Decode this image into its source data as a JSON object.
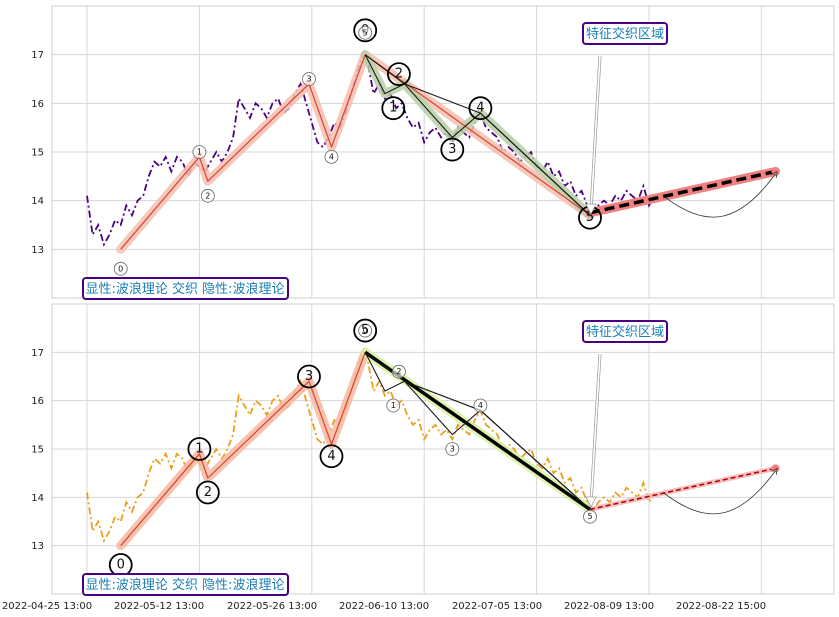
{
  "chart_data": [
    {
      "panel": "top",
      "type": "line",
      "xlim": [
        0,
        23
      ],
      "ylim": [
        12.0,
        18.0
      ],
      "yticks": [
        13,
        14,
        15,
        16,
        17
      ],
      "grid": true,
      "legend_text": "显性:波浪理论 交织 隐性:波浪理论",
      "annotation_text": "特征交织区域",
      "price_series": {
        "style": "dashdot",
        "color": "#4b0082",
        "x": [
          0.0,
          0.2,
          0.4,
          0.6,
          0.8,
          1.0,
          1.2,
          1.4,
          1.6,
          1.8,
          2.0,
          2.2,
          2.4,
          2.6,
          2.8,
          3.0,
          3.2,
          3.4,
          3.6,
          3.8,
          4.0,
          4.2,
          4.4,
          4.6,
          4.8,
          5.0,
          5.2,
          5.4,
          5.6,
          5.8,
          6.0,
          6.2,
          6.4,
          6.6,
          6.8,
          7.0,
          7.2,
          7.4,
          7.6,
          7.8,
          8.0,
          8.2,
          8.4,
          8.6,
          8.8,
          9.0,
          9.2,
          9.4,
          9.6,
          9.8,
          10.0,
          10.2,
          10.4,
          10.6,
          10.8,
          11.0,
          11.2,
          11.4,
          11.6,
          11.8,
          12.0,
          12.2,
          12.4,
          12.6,
          12.8,
          13.0,
          13.2,
          13.4,
          13.6,
          13.8,
          14.0,
          14.2,
          14.4,
          14.6,
          14.8,
          15.0,
          15.2,
          15.4,
          15.6,
          15.8,
          16.0,
          16.2,
          16.4,
          16.6,
          16.8,
          17.0,
          17.2,
          17.4,
          17.6,
          17.8,
          18.0,
          18.2,
          18.4,
          18.6,
          18.8,
          19.0,
          19.2,
          19.4,
          19.6,
          19.8,
          20.0,
          20.2
        ],
        "y": [
          14.1,
          13.3,
          13.5,
          13.1,
          13.3,
          13.6,
          13.5,
          13.9,
          13.7,
          14.0,
          14.1,
          14.5,
          14.8,
          14.7,
          14.9,
          14.6,
          14.9,
          14.8,
          14.5,
          14.8,
          14.7,
          14.6,
          14.8,
          15.0,
          14.8,
          15.0,
          15.3,
          16.1,
          15.9,
          15.7,
          16.0,
          15.9,
          15.7,
          16.0,
          16.1,
          15.8,
          15.9,
          16.2,
          16.4,
          16.0,
          15.6,
          15.2,
          15.1,
          15.3,
          15.6,
          15.5,
          15.8,
          16.2,
          16.6,
          17.0,
          16.8,
          16.2,
          16.4,
          16.1,
          16.2,
          15.9,
          16.0,
          15.7,
          15.5,
          15.6,
          15.2,
          15.4,
          15.5,
          15.3,
          15.4,
          15.2,
          15.5,
          15.4,
          15.3,
          15.6,
          15.8,
          15.5,
          15.4,
          15.3,
          15.0,
          15.1,
          15.0,
          14.8,
          14.9,
          15.0,
          14.7,
          14.6,
          14.8,
          14.5,
          14.6,
          14.3,
          14.4,
          14.1,
          14.2,
          13.9,
          13.7,
          13.9,
          14.0,
          13.9,
          14.1,
          14.0,
          14.2,
          14.1,
          14.0,
          14.3,
          13.9,
          14.1
        ]
      },
      "wave_lines": [
        {
          "name": "major-wave",
          "color": "#e04030",
          "band": "#f3c0b0",
          "points": [
            [
              1.2,
              13.0
            ],
            [
              4.0,
              14.9
            ],
            [
              4.3,
              14.4
            ],
            [
              7.9,
              16.4
            ],
            [
              8.7,
              15.1
            ],
            [
              9.9,
              17.0
            ],
            [
              17.9,
              13.7
            ]
          ]
        },
        {
          "name": "minor-wave-fill",
          "color": "#1a1a1a",
          "band": "#b9cfa6",
          "points": [
            [
              9.9,
              17.0
            ],
            [
              10.6,
              16.2
            ],
            [
              11.3,
              16.4
            ],
            [
              13.0,
              15.3
            ],
            [
              14.0,
              15.8
            ],
            [
              17.9,
              13.7
            ]
          ]
        },
        {
          "name": "minor-wave-envelope",
          "color": "#1a1a1a",
          "band": null,
          "points": [
            [
              9.9,
              17.0
            ],
            [
              11.3,
              16.4
            ],
            [
              14.0,
              15.8
            ],
            [
              17.9,
              13.7
            ]
          ]
        }
      ],
      "forecast": {
        "start": [
          17.9,
          13.75
        ],
        "end": [
          24.5,
          14.6
        ],
        "color": "#000000",
        "band": "#f08080"
      },
      "wave_labels": [
        {
          "text": "0",
          "x": 1.2,
          "y": 12.6,
          "size": "small"
        },
        {
          "text": "1",
          "x": 4.0,
          "y": 15.0,
          "size": "small"
        },
        {
          "text": "2",
          "x": 4.3,
          "y": 14.1,
          "size": "small"
        },
        {
          "text": "3",
          "x": 7.9,
          "y": 16.5,
          "size": "small"
        },
        {
          "text": "4",
          "x": 8.7,
          "y": 14.9,
          "size": "small"
        },
        {
          "text": "0",
          "x": 9.9,
          "y": 17.5,
          "size": "large"
        },
        {
          "text": "5",
          "x": 9.9,
          "y": 17.45,
          "size": "small"
        },
        {
          "text": "1",
          "x": 10.9,
          "y": 15.9,
          "size": "large"
        },
        {
          "text": "2",
          "x": 11.1,
          "y": 16.6,
          "size": "large"
        },
        {
          "text": "3",
          "x": 13.0,
          "y": 15.05,
          "size": "large"
        },
        {
          "text": "4",
          "x": 14.0,
          "y": 15.9,
          "size": "large"
        },
        {
          "text": "5",
          "x": 17.9,
          "y": 13.65,
          "size": "large"
        }
      ]
    },
    {
      "panel": "bottom",
      "type": "line",
      "xlim": [
        0,
        23
      ],
      "ylim": [
        12.0,
        18.0
      ],
      "yticks": [
        13,
        14,
        15,
        16,
        17
      ],
      "grid": true,
      "legend_text": "显性:波浪理论 交织 隐性:波浪理论",
      "annotation_text": "特征交织区域",
      "x_ticks": [
        "2022-04-25 13:00",
        "2022-05-12 13:00",
        "2022-05-26 13:00",
        "2022-06-10 13:00",
        "2022-07-05 13:00",
        "2022-08-09 13:00",
        "2022-08-22 15:00"
      ],
      "x_tick_pos": [
        0,
        4,
        8,
        12,
        16,
        20,
        24
      ],
      "price_series": {
        "style": "dashdot",
        "color": "#e8a020",
        "same_values_as": "top"
      },
      "wave_lines": [
        {
          "name": "major-wave",
          "color": "#e04030",
          "band": "#f3b8a0",
          "points": [
            [
              1.2,
              13.0
            ],
            [
              4.0,
              14.9
            ],
            [
              4.3,
              14.4
            ],
            [
              7.9,
              16.4
            ],
            [
              8.7,
              15.1
            ],
            [
              9.9,
              17.0
            ]
          ]
        },
        {
          "name": "major-wave-down",
          "color": "#000000",
          "band": "#d8f0a0",
          "points": [
            [
              9.9,
              17.0
            ],
            [
              17.9,
              13.75
            ]
          ]
        },
        {
          "name": "minor-wave",
          "color": "#1a1a1a",
          "band": null,
          "points": [
            [
              9.9,
              17.0
            ],
            [
              10.6,
              16.2
            ],
            [
              11.3,
              16.4
            ],
            [
              13.0,
              15.3
            ],
            [
              14.0,
              15.8
            ],
            [
              17.9,
              13.75
            ]
          ]
        },
        {
          "name": "minor-wave-envelope",
          "color": "#1a1a1a",
          "band": null,
          "points": [
            [
              9.9,
              17.0
            ],
            [
              11.3,
              16.4
            ],
            [
              14.0,
              15.8
            ],
            [
              17.9,
              13.75
            ]
          ]
        }
      ],
      "forecast": {
        "start": [
          17.9,
          13.75
        ],
        "end": [
          24.5,
          14.6
        ],
        "color": "#c00000",
        "band": "#f4c0c0"
      },
      "wave_labels": [
        {
          "text": "0",
          "x": 1.2,
          "y": 12.6,
          "size": "large"
        },
        {
          "text": "1",
          "x": 4.0,
          "y": 15.0,
          "size": "large"
        },
        {
          "text": "2",
          "x": 4.3,
          "y": 14.1,
          "size": "large"
        },
        {
          "text": "3",
          "x": 7.9,
          "y": 16.5,
          "size": "large"
        },
        {
          "text": "4",
          "x": 8.7,
          "y": 14.85,
          "size": "large"
        },
        {
          "text": "0",
          "x": 9.9,
          "y": 17.45,
          "size": "small"
        },
        {
          "text": "5",
          "x": 9.9,
          "y": 17.45,
          "size": "large"
        },
        {
          "text": "1",
          "x": 10.9,
          "y": 15.9,
          "size": "small"
        },
        {
          "text": "2",
          "x": 11.1,
          "y": 16.6,
          "size": "small"
        },
        {
          "text": "3",
          "x": 13.0,
          "y": 15.0,
          "size": "small"
        },
        {
          "text": "4",
          "x": 14.0,
          "y": 15.9,
          "size": "small"
        },
        {
          "text": "5",
          "x": 17.9,
          "y": 13.6,
          "size": "small"
        }
      ]
    }
  ]
}
